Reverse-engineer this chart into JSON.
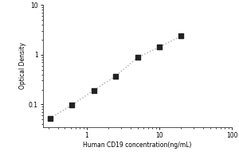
{
  "x_values": [
    0.313,
    0.625,
    1.25,
    2.5,
    5.0,
    10.0,
    20.0
  ],
  "y_values": [
    0.053,
    0.097,
    0.192,
    0.37,
    0.87,
    1.42,
    2.35
  ],
  "xlabel": "Human CD19 concentration(ng/mL)",
  "ylabel": "Optical Density",
  "xlim": [
    0.25,
    100
  ],
  "ylim": [
    0.035,
    10
  ],
  "x_ticks": [
    1,
    10,
    100
  ],
  "y_ticks": [
    0.1,
    1,
    10
  ],
  "dot_color": "#222222",
  "line_color": "#aaaaaa",
  "marker": "s",
  "marker_size": 4,
  "line_style": ":",
  "line_width": 1.0,
  "font_size_label": 5.5,
  "font_size_tick": 5.5,
  "background_color": "#ffffff"
}
